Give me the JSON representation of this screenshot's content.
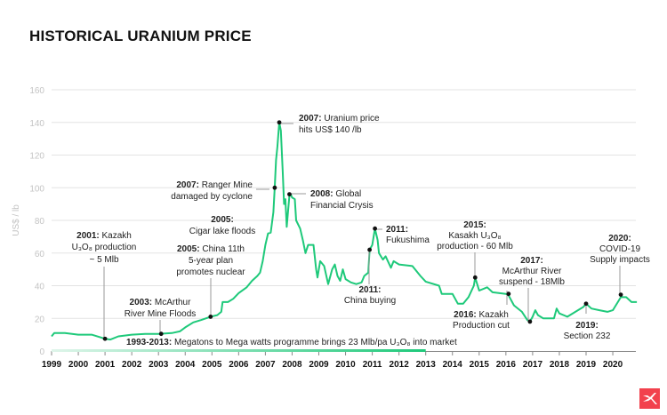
{
  "chart_data": {
    "type": "line",
    "title": "HISTORICAL URANIUM PRICE",
    "ylabel": "US$ / lb",
    "xlabel": "",
    "ylim": [
      0,
      160
    ],
    "xlim": [
      1999,
      2020.9
    ],
    "yticks": [
      "0",
      "20",
      "40",
      "60",
      "80",
      "100",
      "120",
      "140",
      "160"
    ],
    "xticks": [
      "1999",
      "2000",
      "2001",
      "2002",
      "2003",
      "2004",
      "2005",
      "2006",
      "2007",
      "2008",
      "2009",
      "2010",
      "2011",
      "2012",
      "2013",
      "2014",
      "2015",
      "2016",
      "2017",
      "2018",
      "2019",
      "2020"
    ],
    "grid": true,
    "line_color": "#1ec97a",
    "series": [
      {
        "x": [
          1999.0,
          1999.1,
          1999.5,
          2000.0,
          2000.5,
          2001.0,
          2001.2,
          2001.5,
          2002.0,
          2002.5,
          2003.0,
          2003.5,
          2003.8,
          2004.0,
          2004.3,
          2004.6,
          2004.95,
          2005.2,
          2005.35,
          2005.4,
          2005.6,
          2005.8,
          2006.0,
          2006.3,
          2006.5,
          2006.7,
          2006.8,
          2006.9,
          2007.0,
          2007.1,
          2007.2,
          2007.3,
          2007.35,
          2007.4,
          2007.45,
          2007.52,
          2007.58,
          2007.65,
          2007.7,
          2007.75,
          2007.8,
          2007.9,
          2007.95,
          2008.0,
          2008.1,
          2008.15,
          2008.3,
          2008.4,
          2008.5,
          2008.6,
          2008.8,
          2008.9,
          2008.95,
          2009.05,
          2009.2,
          2009.35,
          2009.5,
          2009.6,
          2009.7,
          2009.8,
          2009.9,
          2010.0,
          2010.2,
          2010.4,
          2010.6,
          2010.7,
          2010.85,
          2010.9,
          2011.0,
          2011.1,
          2011.2,
          2011.25,
          2011.4,
          2011.5,
          2011.7,
          2011.8,
          2012.0,
          2012.5,
          2012.8,
          2013.0,
          2013.5,
          2013.6,
          2014.0,
          2014.2,
          2014.4,
          2014.6,
          2014.8,
          2014.85,
          2015.0,
          2015.3,
          2015.5,
          2016.0,
          2016.1,
          2016.3,
          2016.6,
          2016.8,
          2016.9,
          2017.0,
          2017.1,
          2017.2,
          2017.4,
          2017.8,
          2017.9,
          2018.0,
          2018.3,
          2018.6,
          2018.9,
          2019.0,
          2019.2,
          2019.5,
          2019.8,
          2020.0,
          2020.3,
          2020.5,
          2020.7,
          2020.9
        ],
        "values": [
          9,
          11,
          11,
          10,
          10,
          7.5,
          7,
          9,
          10,
          10.5,
          10.5,
          11,
          12,
          14.5,
          17.5,
          19,
          21,
          22,
          24,
          30,
          30,
          32,
          35.5,
          39,
          43,
          46,
          48,
          55,
          65,
          72,
          72.5,
          85,
          100,
          117,
          125,
          140,
          135,
          110,
          90,
          93,
          76,
          95,
          96,
          94,
          93,
          80,
          75,
          68,
          60,
          65,
          65,
          50,
          45,
          55,
          52,
          41,
          50,
          53,
          46,
          43,
          50,
          44,
          42,
          41,
          42,
          46,
          48,
          62,
          65,
          75,
          68,
          60,
          56,
          58,
          51,
          55,
          53,
          52,
          46,
          42.5,
          40,
          35,
          35,
          29,
          29,
          33,
          40,
          45,
          37,
          39,
          36,
          35,
          34,
          28,
          24,
          19,
          18,
          21,
          25,
          22,
          20,
          20,
          26,
          23,
          21,
          24,
          27,
          29,
          26,
          25,
          24,
          25,
          33,
          33,
          30,
          30
        ]
      }
    ],
    "annotations": [
      {
        "year": "2001:",
        "text": [
          "Kazakh",
          "U₃O₈ production",
          "~ 5 Mlb"
        ],
        "x": 2001.0,
        "y": 7.5
      },
      {
        "year": "2003:",
        "text": [
          "McArthur",
          "River Mine Floods"
        ],
        "x": 2003.1,
        "y": 10.5
      },
      {
        "year": "2005:",
        "text": [
          "China 11th",
          "5-year plan",
          "promotes nuclear"
        ],
        "x": 2004.95,
        "y": 21
      },
      {
        "year": "2005:",
        "text": [
          "",
          "Cigar lake floods"
        ],
        "x": null,
        "y": null
      },
      {
        "year": "2007:",
        "text": [
          "Ranger Mine",
          "damaged by cyclone"
        ],
        "x": 2007.35,
        "y": 100
      },
      {
        "year": "2007:",
        "text": [
          "Uranium price",
          "hits US$ 140 /lb"
        ],
        "x": 2007.52,
        "y": 140
      },
      {
        "year": "2008:",
        "text": [
          "Global",
          "Financial Crysis"
        ],
        "x": 2007.9,
        "y": 96
      },
      {
        "year": "2011:",
        "text": [
          "",
          "Fukushima"
        ],
        "x": 2011.1,
        "y": 75
      },
      {
        "year": "2011:",
        "text": [
          "",
          "China buying"
        ],
        "x": 2010.9,
        "y": 62
      },
      {
        "year": "2015:",
        "text": [
          "",
          "Kasakh U₃O₈",
          "production - 60 Mlb"
        ],
        "x": 2014.85,
        "y": 45
      },
      {
        "year": "2016:",
        "text": [
          "Kazakh",
          "Production cut"
        ],
        "x": 2016.1,
        "y": 35
      },
      {
        "year": "2017:",
        "text": [
          "",
          "McArthur River",
          "suspend - 18Mlb"
        ],
        "x": 2016.9,
        "y": 18
      },
      {
        "year": "2019:",
        "text": [
          "",
          "Section 232"
        ],
        "x": 2019.0,
        "y": 29
      },
      {
        "year": "2020:",
        "text": [
          "",
          "COVID-19",
          "Supply impacts"
        ],
        "x": 2020.3,
        "y": 34.5
      }
    ],
    "range_annotation": {
      "year": "1993-2013:",
      "text": "Megatons to Mega watts programme brings 23 Mlb/pa U₃O₈ into market",
      "from": 1999,
      "to": 2013
    }
  },
  "logo": {
    "name": "x-logo",
    "color": "#f2414d"
  }
}
